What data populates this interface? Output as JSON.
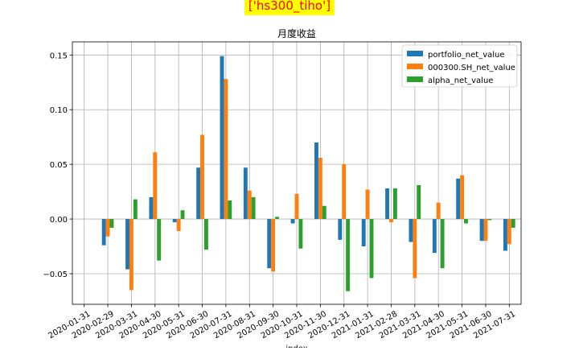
{
  "figure": {
    "suptitle": "['hs300_tiho']",
    "colors": {
      "suptitle_text": "#ff0000",
      "suptitle_bg": "#ffff00"
    }
  },
  "chart_data": {
    "type": "bar",
    "title": "月度收益",
    "xlabel": "index",
    "ylabel": "",
    "ylim": [
      -0.078,
      0.162
    ],
    "yticks": [
      -0.05,
      0.0,
      0.05,
      0.1,
      0.15
    ],
    "ytick_labels": [
      "−0.05",
      "0.00",
      "0.05",
      "0.10",
      "0.15"
    ],
    "grid": true,
    "legend_position": "top-right",
    "categories": [
      "2020-01-31",
      "2020-02-29",
      "2020-03-31",
      "2020-04-30",
      "2020-05-31",
      "2020-06-30",
      "2020-07-31",
      "2020-08-31",
      "2020-09-30",
      "2020-10-31",
      "2020-11-30",
      "2020-12-31",
      "2021-01-31",
      "2021-02-28",
      "2021-03-31",
      "2021-04-30",
      "2021-05-31",
      "2021-06-30",
      "2021-07-31"
    ],
    "series": [
      {
        "name": "portfolio_net_value",
        "color": "#1f77b4",
        "values": [
          null,
          -0.024,
          -0.046,
          0.02,
          -0.003,
          0.047,
          0.149,
          0.047,
          -0.045,
          -0.004,
          0.07,
          -0.019,
          -0.025,
          0.028,
          -0.021,
          -0.031,
          0.037,
          -0.02,
          -0.029
        ]
      },
      {
        "name": "000300.SH_net_value",
        "color": "#ff7f0e",
        "values": [
          null,
          -0.016,
          -0.065,
          0.061,
          -0.011,
          0.077,
          0.128,
          0.026,
          -0.048,
          0.023,
          0.056,
          0.05,
          0.027,
          -0.003,
          -0.054,
          0.015,
          0.04,
          -0.02,
          -0.023
        ]
      },
      {
        "name": "alpha_net_value",
        "color": "#2ca02c",
        "values": [
          null,
          -0.008,
          0.018,
          -0.038,
          0.008,
          -0.028,
          0.017,
          0.02,
          0.002,
          -0.027,
          0.012,
          -0.066,
          -0.054,
          0.028,
          0.031,
          -0.045,
          -0.004,
          -0.001,
          -0.008
        ]
      }
    ]
  }
}
